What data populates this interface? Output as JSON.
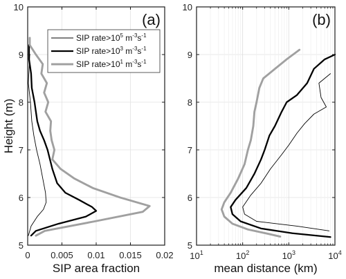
{
  "chart_data": [
    {
      "type": "line",
      "panel_label": "(a)",
      "xlabel": "SIP area fraction",
      "ylabel": "Height (m)",
      "xlim": [
        0,
        0.02
      ],
      "ylim": [
        5,
        10
      ],
      "xscale": "linear",
      "xticks": [
        0,
        0.005,
        0.01,
        0.015,
        0.02
      ],
      "xtick_labels": [
        "0",
        "0.005",
        "0.01",
        "0.015",
        "0.02"
      ],
      "yticks": [
        5,
        6,
        7,
        8,
        9,
        10
      ],
      "ytick_labels": [
        "5",
        "6",
        "7",
        "8",
        "9",
        "10"
      ],
      "grid": true,
      "legend_position": "top-right",
      "series": [
        {
          "label_base": "SIP rate>10",
          "label_exp": "5",
          "label_unit": " m",
          "label_unit_exp": "-3",
          "label_unit2": "s",
          "label_unit2_exp": "-1",
          "color": "#000000",
          "style": "thin",
          "points": [
            [
              0.0003,
              9.0
            ],
            [
              0.0001,
              8.4
            ],
            [
              0.0004,
              8.0
            ],
            [
              0.0006,
              7.6
            ],
            [
              0.0009,
              7.3
            ],
            [
              0.0013,
              7.0
            ],
            [
              0.0018,
              6.7
            ],
            [
              0.0022,
              6.4
            ],
            [
              0.0026,
              6.1
            ],
            [
              0.0027,
              5.9
            ],
            [
              0.0023,
              5.75
            ],
            [
              0.0014,
              5.6
            ],
            [
              0.0005,
              5.4
            ],
            [
              0.0001,
              5.2
            ]
          ]
        },
        {
          "label_base": "SIP rate>10",
          "label_exp": "3",
          "label_unit": " m",
          "label_unit_exp": "-3",
          "label_unit2": "s",
          "label_unit2_exp": "-1",
          "color": "#000000",
          "style": "thick",
          "points": [
            [
              0.0002,
              9.2
            ],
            [
              0.0002,
              8.9
            ],
            [
              0.0005,
              8.6
            ],
            [
              0.0006,
              8.3
            ],
            [
              0.001,
              8.0
            ],
            [
              0.0012,
              7.8
            ],
            [
              0.0014,
              7.6
            ],
            [
              0.0018,
              7.4
            ],
            [
              0.0024,
              7.2
            ],
            [
              0.0029,
              7.0
            ],
            [
              0.0036,
              6.6
            ],
            [
              0.0043,
              6.3
            ],
            [
              0.0055,
              6.1
            ],
            [
              0.0075,
              5.95
            ],
            [
              0.0094,
              5.8
            ],
            [
              0.01,
              5.72
            ],
            [
              0.0085,
              5.6
            ],
            [
              0.0045,
              5.45
            ],
            [
              0.0012,
              5.3
            ],
            [
              0.0005,
              5.2
            ]
          ]
        },
        {
          "label_base": "SIP rate>10",
          "label_exp": "1",
          "label_unit": " m",
          "label_unit_exp": "-3",
          "label_unit2": "s",
          "label_unit2_exp": "-1",
          "color": "#a0a0a0",
          "style": "gray",
          "points": [
            [
              0.0003,
              9.35
            ],
            [
              0.0003,
              9.2
            ],
            [
              0.0012,
              9.0
            ],
            [
              0.0022,
              8.8
            ],
            [
              0.002,
              8.6
            ],
            [
              0.0028,
              8.4
            ],
            [
              0.0024,
              8.2
            ],
            [
              0.003,
              8.0
            ],
            [
              0.0026,
              7.8
            ],
            [
              0.0034,
              7.6
            ],
            [
              0.0033,
              7.4
            ],
            [
              0.0035,
              7.2
            ],
            [
              0.0039,
              7.0
            ],
            [
              0.0036,
              6.8
            ],
            [
              0.0048,
              6.6
            ],
            [
              0.0068,
              6.4
            ],
            [
              0.0095,
              6.2
            ],
            [
              0.0135,
              6.0
            ],
            [
              0.0178,
              5.82
            ],
            [
              0.0168,
              5.7
            ],
            [
              0.0098,
              5.5
            ],
            [
              0.0025,
              5.3
            ],
            [
              0.0012,
              5.2
            ]
          ]
        }
      ]
    },
    {
      "type": "line",
      "panel_label": "(b)",
      "xlabel": "mean distance (km)",
      "ylabel": "",
      "xlim": [
        10,
        10000
      ],
      "ylim": [
        5,
        10
      ],
      "xscale": "log",
      "xticks": [
        10,
        100,
        1000,
        10000
      ],
      "xtick_base": "10",
      "xtick_exps": [
        "1",
        "2",
        "3",
        "4"
      ],
      "yticks": [
        5,
        6,
        7,
        8,
        9,
        10
      ],
      "ytick_labels": [
        "5",
        "6",
        "7",
        "8",
        "9",
        "10"
      ],
      "grid": true,
      "series": [
        {
          "color": "#000000",
          "style": "thin",
          "points": [
            [
              8000,
              8.6
            ],
            [
              4500,
              8.4
            ],
            [
              5000,
              8.1
            ],
            [
              6500,
              7.9
            ],
            [
              3500,
              7.75
            ],
            [
              2200,
              7.55
            ],
            [
              1500,
              7.35
            ],
            [
              1000,
              7.1
            ],
            [
              700,
              6.9
            ],
            [
              400,
              6.6
            ],
            [
              250,
              6.3
            ],
            [
              150,
              6.05
            ],
            [
              100,
              5.8
            ],
            [
              110,
              5.65
            ],
            [
              200,
              5.5
            ],
            [
              1500,
              5.4
            ],
            [
              7500,
              5.3
            ]
          ]
        },
        {
          "color": "#000000",
          "style": "thick",
          "points": [
            [
              10000,
              9.0
            ],
            [
              6000,
              8.9
            ],
            [
              3500,
              8.7
            ],
            [
              2500,
              8.4
            ],
            [
              1500,
              8.15
            ],
            [
              900,
              8.0
            ],
            [
              700,
              7.8
            ],
            [
              500,
              7.5
            ],
            [
              380,
              7.3
            ],
            [
              300,
              7.0
            ],
            [
              250,
              6.8
            ],
            [
              180,
              6.5
            ],
            [
              120,
              6.2
            ],
            [
              70,
              5.95
            ],
            [
              55,
              5.8
            ],
            [
              60,
              5.65
            ],
            [
              90,
              5.5
            ],
            [
              250,
              5.35
            ],
            [
              1200,
              5.25
            ],
            [
              8000,
              5.17
            ]
          ]
        },
        {
          "color": "#a0a0a0",
          "style": "gray",
          "points": [
            [
              1700,
              9.1
            ],
            [
              900,
              8.9
            ],
            [
              500,
              8.7
            ],
            [
              280,
              8.5
            ],
            [
              230,
              8.3
            ],
            [
              200,
              8.0
            ],
            [
              180,
              7.8
            ],
            [
              170,
              7.5
            ],
            [
              150,
              7.2
            ],
            [
              130,
              7.0
            ],
            [
              110,
              6.7
            ],
            [
              80,
              6.4
            ],
            [
              55,
              6.1
            ],
            [
              40,
              5.9
            ],
            [
              35,
              5.75
            ],
            [
              40,
              5.6
            ],
            [
              60,
              5.45
            ],
            [
              130,
              5.33
            ],
            [
              350,
              5.24
            ],
            [
              650,
              5.18
            ]
          ]
        }
      ]
    }
  ]
}
